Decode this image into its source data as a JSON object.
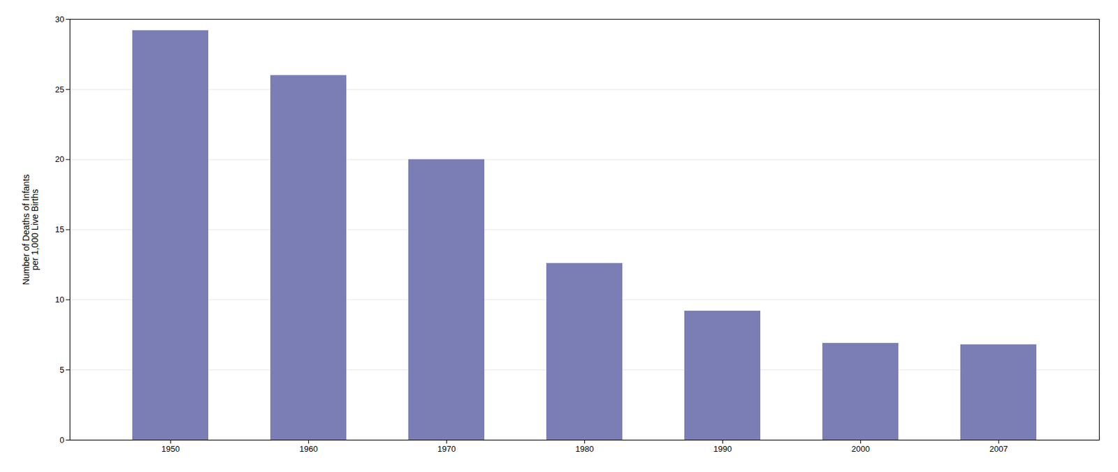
{
  "chart_data": {
    "type": "bar",
    "categories": [
      "1950",
      "1960",
      "1970",
      "1980",
      "1990",
      "2000",
      "2007"
    ],
    "values": [
      29.2,
      26.0,
      20.0,
      12.6,
      9.2,
      6.9,
      6.8
    ],
    "color": "#7b7db5",
    "ylabel": "Number of Deaths of Infants\nper 1,000 Live Births",
    "ylim": [
      0,
      30
    ],
    "yticks": [
      0,
      5,
      10,
      15,
      20,
      25,
      30
    ],
    "grid": true
  }
}
